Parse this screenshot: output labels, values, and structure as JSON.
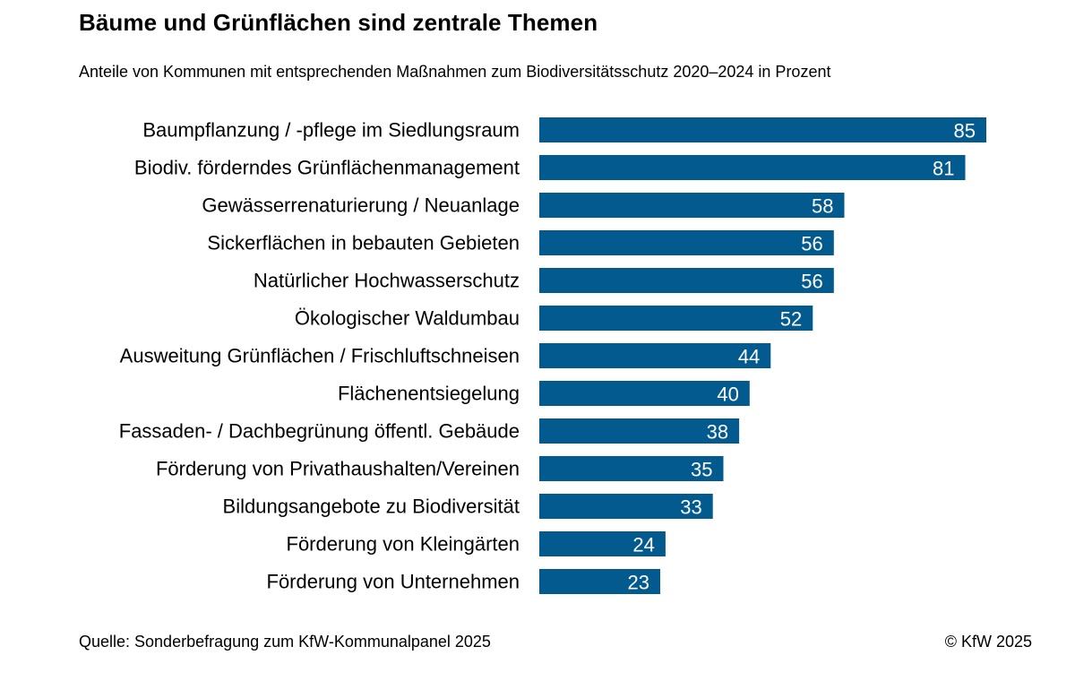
{
  "title": "Bäume und Grünflächen sind zentrale Themen",
  "subtitle": "Anteile von Kommunen mit entsprechenden Maßnahmen zum Biodiversitätsschutz 2020–2024 in Prozent",
  "source": "Quelle: Sonderbefragung zum KfW-Kommunalpanel 2025",
  "copyright": "© KfW 2025",
  "colors": {
    "bar": "#035a8e",
    "bar_label": "#ffffff",
    "text": "#000000"
  },
  "chart_data": {
    "type": "bar",
    "orientation": "horizontal",
    "title": "Bäume und Grünflächen sind zentrale Themen",
    "subtitle": "Anteile von Kommunen mit entsprechenden Maßnahmen zum Biodiversitätsschutz 2020–2024 in Prozent",
    "xlabel": "",
    "ylabel": "",
    "xlim": [
      0,
      85
    ],
    "grid": false,
    "legend": "none",
    "categories": [
      "Baumpflanzung / -pflege im Siedlungsraum",
      "Biodiv. förderndes Grünflächenmanagement",
      "Gewässerrenaturierung / Neuanlage",
      "Sickerflächen in bebauten Gebieten",
      "Natürlicher Hochwasserschutz",
      "Ökologischer Waldumbau",
      "Ausweitung Grünflächen / Frischluftschneisen",
      "Flächenentsiegelung",
      "Fassaden- / Dachbegrünung öffentl. Gebäude",
      "Förderung von Privathaushalten/Vereinen",
      "Bildungsangebote zu Biodiversität",
      "Förderung von Kleingärten",
      "Förderung von Unternehmen"
    ],
    "values": [
      85,
      81,
      58,
      56,
      56,
      52,
      44,
      40,
      38,
      35,
      33,
      24,
      23
    ]
  }
}
